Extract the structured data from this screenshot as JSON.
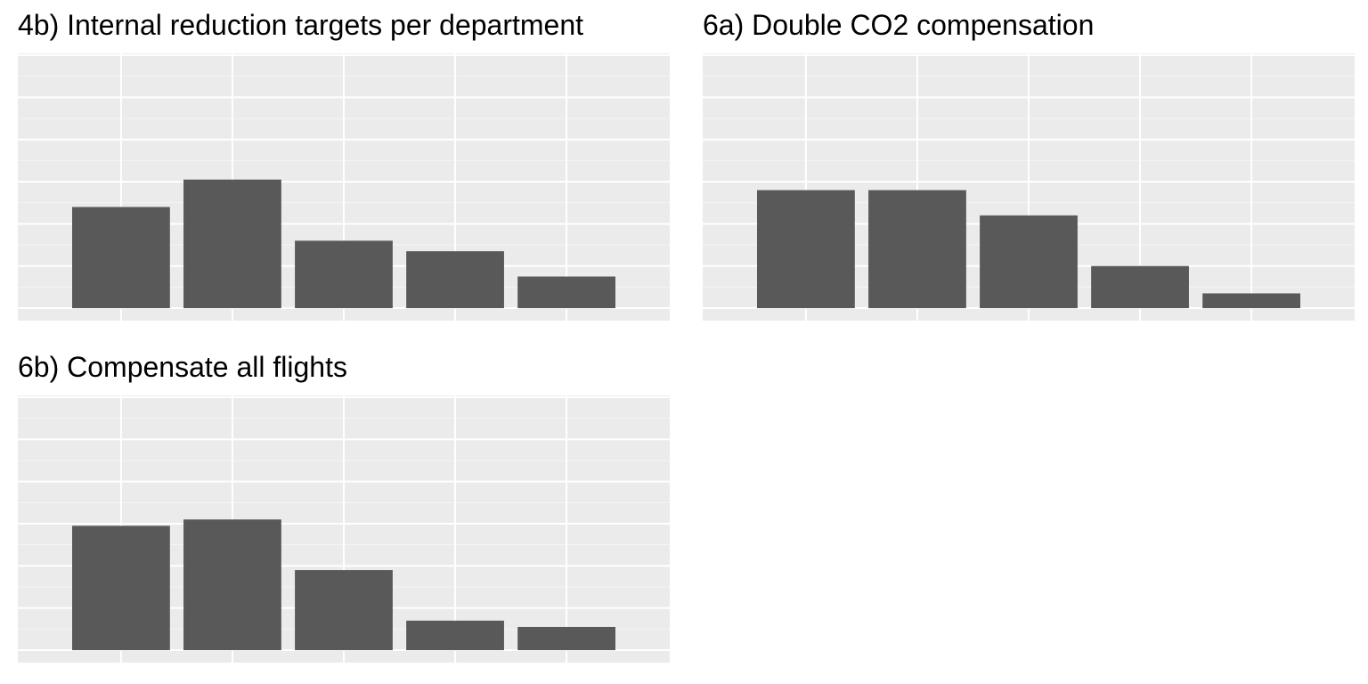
{
  "colors": {
    "panel_background": "#EBEBEB",
    "grid_major": "#FFFFFF",
    "grid_minor": "#F5F5F5",
    "bar_fill": "#595959",
    "page_background": "#FFFFFF"
  },
  "chart_data": [
    {
      "type": "bar",
      "title": "4b) Internal reduction targets per department",
      "categories": [
        "",
        "",
        "",
        "",
        ""
      ],
      "values": [
        24,
        30.5,
        16,
        13.5,
        7.5
      ],
      "ylim": [
        0,
        60
      ],
      "xlabel": "",
      "ylabel": "",
      "grid": true,
      "axis_labels_visible": false
    },
    {
      "type": "bar",
      "title": "6a) Double CO2 compensation",
      "categories": [
        "",
        "",
        "",
        "",
        ""
      ],
      "values": [
        28,
        28,
        22,
        10,
        3.5
      ],
      "ylim": [
        0,
        60
      ],
      "xlabel": "",
      "ylabel": "",
      "grid": true,
      "axis_labels_visible": false
    },
    {
      "type": "bar",
      "title": "6b) Compensate all flights",
      "categories": [
        "",
        "",
        "",
        "",
        ""
      ],
      "values": [
        29.5,
        31,
        19,
        7,
        5.5
      ],
      "ylim": [
        0,
        60
      ],
      "xlabel": "",
      "ylabel": "",
      "grid": true,
      "axis_labels_visible": false
    }
  ]
}
